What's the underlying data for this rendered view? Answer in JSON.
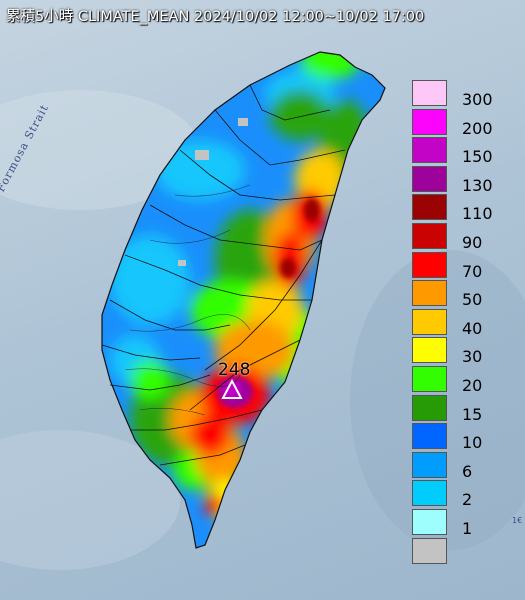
{
  "header": {
    "title": "累積5小時 CLIMATE_MEAN 2024/10/02 12:00~10/02 17:00"
  },
  "map": {
    "strait_label": "Formosa Strait",
    "corner_fragment": "1€",
    "peak": {
      "value": "248",
      "marker": "triangle-icon"
    }
  },
  "legend": {
    "items": [
      {
        "label": "300",
        "color": "#fdc8f7"
      },
      {
        "label": "200",
        "color": "#fc03fb"
      },
      {
        "label": "150",
        "color": "#c304c6"
      },
      {
        "label": "130",
        "color": "#9d029a"
      },
      {
        "label": "110",
        "color": "#9b0303"
      },
      {
        "label": "90",
        "color": "#cb0202"
      },
      {
        "label": "70",
        "color": "#fe0000"
      },
      {
        "label": "50",
        "color": "#fe9a00"
      },
      {
        "label": "40",
        "color": "#ffcb00"
      },
      {
        "label": "30",
        "color": "#fffe00"
      },
      {
        "label": "20",
        "color": "#32fe01"
      },
      {
        "label": "15",
        "color": "#279b06"
      },
      {
        "label": "10",
        "color": "#0066ff"
      },
      {
        "label": "6",
        "color": "#009dfe"
      },
      {
        "label": "2",
        "color": "#00ccfe"
      },
      {
        "label": "1",
        "color": "#9efefe"
      },
      {
        "label": "",
        "color": "#c3c3c3"
      }
    ]
  },
  "colors": {
    "sea": "#afc5d8",
    "island_base": "#1a8ffb",
    "outline": "#111111"
  }
}
